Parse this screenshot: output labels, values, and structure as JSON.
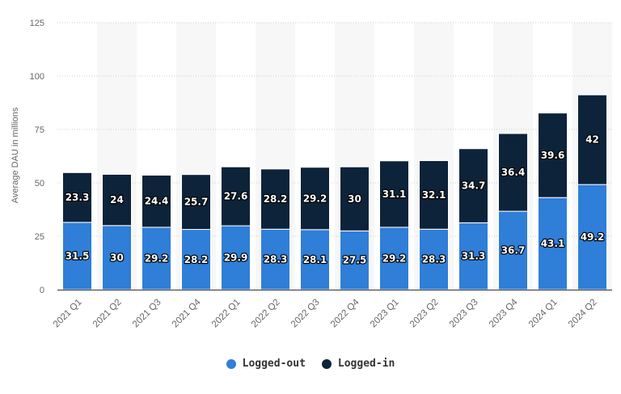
{
  "chart_data": {
    "type": "bar",
    "stacked": true,
    "categories": [
      "2021 Q1",
      "2021 Q2",
      "2021 Q3",
      "2021 Q4",
      "2022 Q1",
      "2022 Q2",
      "2022 Q3",
      "2022 Q4",
      "2023 Q1",
      "2023 Q2",
      "2023 Q3",
      "2023 Q4",
      "2024 Q1",
      "2024 Q2"
    ],
    "series": [
      {
        "name": "Logged-out",
        "color": "#2f7ed8",
        "values": [
          31.5,
          30,
          29.2,
          28.2,
          29.9,
          28.3,
          28.1,
          27.5,
          29.2,
          28.3,
          31.3,
          36.7,
          43.1,
          49.2
        ]
      },
      {
        "name": "Logged-in",
        "color": "#0d233a",
        "values": [
          23.3,
          24,
          24.4,
          25.7,
          27.6,
          28.2,
          29.2,
          30,
          31.1,
          32.1,
          34.7,
          36.4,
          39.6,
          42
        ]
      }
    ],
    "title": "",
    "xlabel": "",
    "ylabel": "Average DAU in millions",
    "ylim": [
      0,
      125
    ],
    "yticks": [
      0,
      25,
      50,
      75,
      100,
      125
    ],
    "grid": true,
    "legend_position": "bottom-center"
  }
}
